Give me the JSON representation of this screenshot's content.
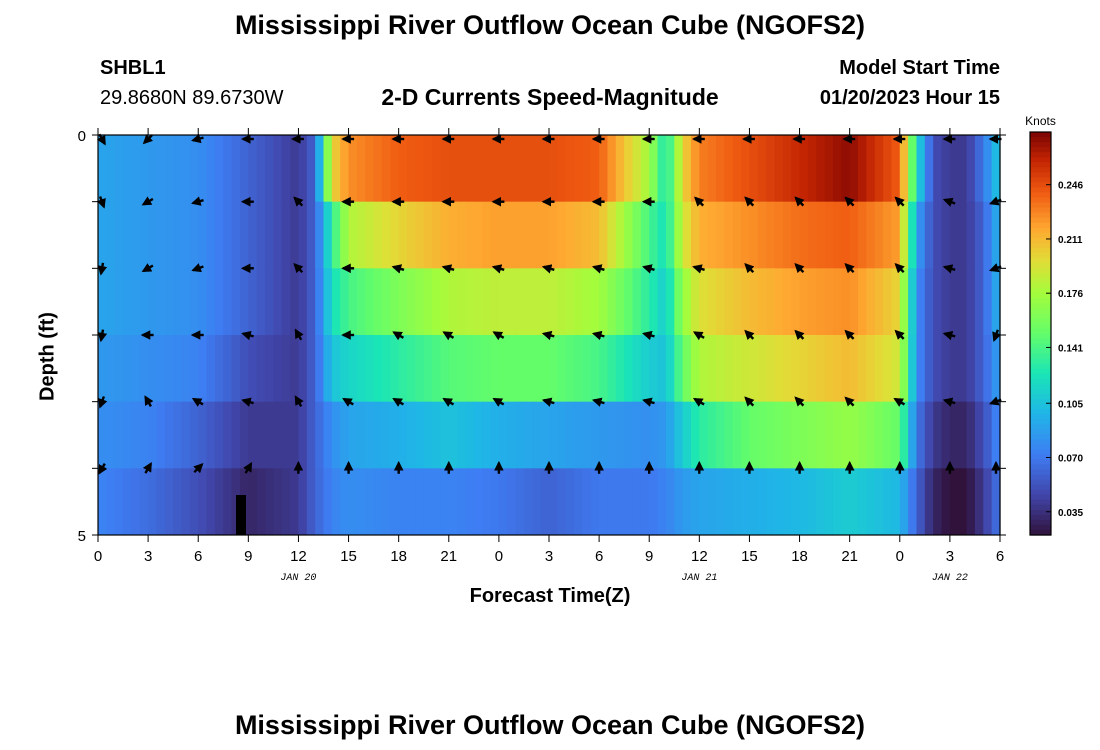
{
  "page": {
    "title": "Mississippi River Outflow Ocean Cube (NGOFS2)",
    "footer_title": "Mississippi River Outflow Ocean Cube (NGOFS2)",
    "station_id": "SHBL1",
    "station_coords": "29.8680N  89.6730W",
    "model_start_label": "Model Start Time",
    "model_start_value": "01/20/2023 Hour 15"
  },
  "chart_data": {
    "type": "heatmap",
    "title": "2-D Currents Speed-Magnitude",
    "xlabel": "Forecast Time(Z)",
    "ylabel": "Depth (ft)",
    "y_ticks": [
      "0",
      "5"
    ],
    "ylim": [
      0,
      5
    ],
    "x_tick_labels": [
      "0",
      "3",
      "6",
      "9",
      "12",
      "15",
      "18",
      "21",
      "0",
      "3",
      "6",
      "9",
      "12",
      "15",
      "18",
      "21",
      "0",
      "3",
      "6"
    ],
    "date_labels": [
      {
        "text": "JAN 20",
        "at_tick": 4
      },
      {
        "text": "JAN 21",
        "at_tick": 12
      },
      {
        "text": "JAN 22",
        "at_tick": 17
      }
    ],
    "colorbar": {
      "unit": "Knots",
      "ticks": [
        "0.246",
        "0.211",
        "0.176",
        "0.141",
        "0.105",
        "0.070",
        "0.035"
      ],
      "tick_values": [
        0.246,
        0.211,
        0.176,
        0.141,
        0.105,
        0.07,
        0.035
      ],
      "range": [
        0.02,
        0.28
      ]
    },
    "time_hours": [
      0,
      3,
      6,
      9,
      12,
      13,
      14,
      15,
      18,
      21,
      24,
      27,
      30,
      33,
      34,
      35,
      36,
      39,
      42,
      45,
      48,
      49,
      50,
      51,
      52,
      53,
      54
    ],
    "layers": [
      {
        "depth_row": 0,
        "values": [
          0.09,
          0.085,
          0.08,
          0.06,
          0.04,
          0.06,
          0.2,
          0.225,
          0.24,
          0.245,
          0.245,
          0.245,
          0.24,
          0.175,
          0.12,
          0.2,
          0.23,
          0.245,
          0.26,
          0.275,
          0.24,
          0.12,
          0.05,
          0.04,
          0.04,
          0.07,
          0.11
        ]
      },
      {
        "depth_row": 1,
        "values": [
          0.09,
          0.085,
          0.08,
          0.06,
          0.04,
          0.06,
          0.13,
          0.18,
          0.2,
          0.215,
          0.22,
          0.22,
          0.21,
          0.14,
          0.12,
          0.19,
          0.215,
          0.225,
          0.235,
          0.24,
          0.22,
          0.09,
          0.05,
          0.04,
          0.04,
          0.06,
          0.1
        ]
      },
      {
        "depth_row": 2,
        "values": [
          0.09,
          0.085,
          0.08,
          0.06,
          0.04,
          0.06,
          0.12,
          0.14,
          0.16,
          0.18,
          0.185,
          0.185,
          0.175,
          0.13,
          0.11,
          0.17,
          0.195,
          0.21,
          0.22,
          0.225,
          0.2,
          0.08,
          0.05,
          0.04,
          0.04,
          0.06,
          0.1
        ]
      },
      {
        "depth_row": 3,
        "values": [
          0.085,
          0.08,
          0.075,
          0.05,
          0.04,
          0.06,
          0.105,
          0.115,
          0.13,
          0.145,
          0.15,
          0.15,
          0.14,
          0.11,
          0.105,
          0.15,
          0.18,
          0.19,
          0.2,
          0.21,
          0.19,
          0.08,
          0.05,
          0.04,
          0.04,
          0.06,
          0.09
        ]
      },
      {
        "depth_row": 4,
        "values": [
          0.08,
          0.075,
          0.06,
          0.04,
          0.04,
          0.06,
          0.08,
          0.09,
          0.095,
          0.105,
          0.095,
          0.09,
          0.085,
          0.08,
          0.085,
          0.11,
          0.13,
          0.15,
          0.16,
          0.17,
          0.15,
          0.07,
          0.04,
          0.03,
          0.03,
          0.05,
          0.08
        ]
      },
      {
        "depth_row": 5,
        "values": [
          0.075,
          0.065,
          0.05,
          0.03,
          0.04,
          0.06,
          0.075,
          0.08,
          0.075,
          0.075,
          0.07,
          0.06,
          0.07,
          0.07,
          0.075,
          0.085,
          0.09,
          0.095,
          0.1,
          0.11,
          0.1,
          0.06,
          0.03,
          0.02,
          0.02,
          0.04,
          0.07
        ]
      }
    ],
    "vector_time_hours": [
      0,
      3,
      6,
      9,
      12,
      15,
      18,
      21,
      24,
      27,
      30,
      33,
      36,
      39,
      42,
      45,
      48,
      51,
      54
    ],
    "vector_angles_deg": [
      [
        300,
        225,
        195,
        180,
        180,
        180,
        180,
        180,
        180,
        180,
        180,
        180,
        180,
        180,
        180,
        180,
        180,
        180,
        180
      ],
      [
        290,
        210,
        195,
        180,
        135,
        180,
        180,
        180,
        180,
        180,
        180,
        180,
        135,
        135,
        135,
        135,
        135,
        160,
        200
      ],
      [
        260,
        210,
        200,
        180,
        135,
        180,
        165,
        165,
        165,
        165,
        165,
        165,
        165,
        135,
        135,
        135,
        135,
        165,
        200
      ],
      [
        260,
        180,
        180,
        165,
        120,
        180,
        150,
        150,
        150,
        165,
        165,
        165,
        150,
        135,
        135,
        135,
        135,
        165,
        250
      ],
      [
        250,
        120,
        150,
        165,
        120,
        150,
        150,
        150,
        150,
        165,
        165,
        165,
        150,
        135,
        135,
        135,
        150,
        165,
        200
      ],
      [
        240,
        60,
        45,
        60,
        90,
        90,
        90,
        90,
        90,
        90,
        90,
        90,
        90,
        90,
        90,
        90,
        90,
        90,
        90
      ]
    ]
  }
}
